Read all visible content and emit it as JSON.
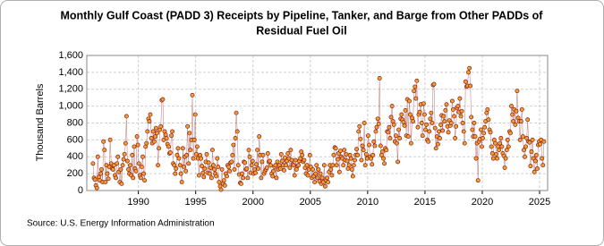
{
  "chart_data": {
    "type": "line",
    "title": [
      "Monthly Gulf Coast (PADD 3) Receipts by Pipeline, Tanker, and Barge from Other PADDs of",
      "Residual Fuel Oil"
    ],
    "ylabel": "Thousand Barrels",
    "source": "Source: U.S. Energy Information Administration",
    "xlim": [
      1985.5,
      2025.7
    ],
    "xticks": [
      1990,
      1995,
      2000,
      2005,
      2010,
      2015,
      2020,
      2025
    ],
    "ylim": [
      0,
      1600
    ],
    "yticks": [
      0,
      200,
      400,
      600,
      800,
      {
        "value": 1000,
        "label": "1,000"
      },
      {
        "value": 1200,
        "label": "1,200"
      },
      {
        "value": 1400,
        "label": "1,400"
      },
      {
        "value": 1600,
        "label": "1,600"
      }
    ],
    "grid": true,
    "series": [
      {
        "color": "#8b1a1a",
        "marker_fill": "#f0a030",
        "x": [
          1986.04,
          1986.13,
          1986.21,
          1986.29,
          1986.38,
          1986.46,
          1986.54,
          1986.63,
          1986.71,
          1986.79,
          1986.88,
          1986.96,
          1987.04,
          1987.13,
          1987.21,
          1987.29,
          1987.38,
          1987.46,
          1987.54,
          1987.63,
          1987.71,
          1987.79,
          1987.88,
          1987.96,
          1988.04,
          1988.13,
          1988.21,
          1988.29,
          1988.38,
          1988.46,
          1988.54,
          1988.63,
          1988.71,
          1988.79,
          1988.88,
          1988.96,
          1989.04,
          1989.13,
          1989.21,
          1989.29,
          1989.38,
          1989.46,
          1989.54,
          1989.63,
          1989.71,
          1989.79,
          1989.88,
          1989.96,
          1990.04,
          1990.13,
          1990.21,
          1990.29,
          1990.38,
          1990.46,
          1990.54,
          1990.63,
          1990.71,
          1990.79,
          1990.88,
          1990.96,
          1991.04,
          1991.13,
          1991.21,
          1991.29,
          1991.38,
          1991.46,
          1991.54,
          1991.63,
          1991.71,
          1991.79,
          1991.88,
          1991.96,
          1992.04,
          1992.13,
          1992.21,
          1992.29,
          1992.38,
          1992.46,
          1992.54,
          1992.63,
          1992.71,
          1992.79,
          1992.88,
          1992.96,
          1993.04,
          1993.13,
          1993.21,
          1993.29,
          1993.38,
          1993.46,
          1993.54,
          1993.63,
          1993.71,
          1993.79,
          1993.88,
          1993.96,
          1994.04,
          1994.13,
          1994.21,
          1994.29,
          1994.38,
          1994.46,
          1994.54,
          1994.63,
          1994.71,
          1994.79,
          1994.88,
          1994.96,
          1995.04,
          1995.13,
          1995.21,
          1995.29,
          1995.38,
          1995.46,
          1995.54,
          1995.63,
          1995.71,
          1995.79,
          1995.88,
          1995.96,
          1996.04,
          1996.13,
          1996.21,
          1996.29,
          1996.38,
          1996.46,
          1996.54,
          1996.63,
          1996.71,
          1996.79,
          1996.88,
          1996.96,
          1997.04,
          1997.13,
          1997.21,
          1997.29,
          1997.38,
          1997.46,
          1997.54,
          1997.63,
          1997.71,
          1997.79,
          1997.88,
          1997.96,
          1998.04,
          1998.13,
          1998.21,
          1998.29,
          1998.38,
          1998.46,
          1998.54,
          1998.63,
          1998.71,
          1998.79,
          1998.88,
          1998.96,
          1999.04,
          1999.13,
          1999.21,
          1999.29,
          1999.38,
          1999.46,
          1999.54,
          1999.63,
          1999.71,
          1999.79,
          1999.88,
          1999.96,
          2000.04,
          2000.13,
          2000.21,
          2000.29,
          2000.38,
          2000.46,
          2000.54,
          2000.63,
          2000.71,
          2000.79,
          2000.88,
          2000.96,
          2001.04,
          2001.13,
          2001.21,
          2001.29,
          2001.38,
          2001.46,
          2001.54,
          2001.63,
          2001.71,
          2001.79,
          2001.88,
          2001.96,
          2002.04,
          2002.13,
          2002.21,
          2002.29,
          2002.38,
          2002.46,
          2002.54,
          2002.63,
          2002.71,
          2002.79,
          2002.88,
          2002.96,
          2003.04,
          2003.13,
          2003.21,
          2003.29,
          2003.38,
          2003.46,
          2003.54,
          2003.63,
          2003.71,
          2003.79,
          2003.88,
          2003.96,
          2004.04,
          2004.13,
          2004.21,
          2004.29,
          2004.38,
          2004.46,
          2004.54,
          2004.63,
          2004.71,
          2004.79,
          2004.88,
          2004.96,
          2005.04,
          2005.13,
          2005.21,
          2005.29,
          2005.38,
          2005.46,
          2005.54,
          2005.63,
          2005.71,
          2005.79,
          2005.88,
          2005.96,
          2006.04,
          2006.13,
          2006.21,
          2006.29,
          2006.38,
          2006.46,
          2006.54,
          2006.63,
          2006.71,
          2006.79,
          2006.88,
          2006.96,
          2007.04,
          2007.13,
          2007.21,
          2007.29,
          2007.38,
          2007.46,
          2007.54,
          2007.63,
          2007.71,
          2007.79,
          2007.88,
          2007.96,
          2008.04,
          2008.13,
          2008.21,
          2008.29,
          2008.38,
          2008.46,
          2008.54,
          2008.63,
          2008.71,
          2008.79,
          2008.88,
          2008.96,
          2009.04,
          2009.13,
          2009.21,
          2009.29,
          2009.38,
          2009.46,
          2009.54,
          2009.63,
          2009.71,
          2009.79,
          2009.88,
          2009.96,
          2010.04,
          2010.13,
          2010.21,
          2010.29,
          2010.38,
          2010.46,
          2010.54,
          2010.63,
          2010.71,
          2010.79,
          2010.88,
          2010.96,
          2011.04,
          2011.13,
          2011.21,
          2011.29,
          2011.38,
          2011.46,
          2011.54,
          2011.63,
          2011.71,
          2011.79,
          2011.88,
          2011.96,
          2012.04,
          2012.13,
          2012.21,
          2012.29,
          2012.38,
          2012.46,
          2012.54,
          2012.63,
          2012.71,
          2012.79,
          2012.88,
          2012.96,
          2013.04,
          2013.13,
          2013.21,
          2013.29,
          2013.38,
          2013.46,
          2013.54,
          2013.63,
          2013.71,
          2013.79,
          2013.88,
          2013.96,
          2014.04,
          2014.13,
          2014.21,
          2014.29,
          2014.38,
          2014.46,
          2014.54,
          2014.63,
          2014.71,
          2014.79,
          2014.88,
          2014.96,
          2015.04,
          2015.13,
          2015.21,
          2015.29,
          2015.38,
          2015.46,
          2015.54,
          2015.63,
          2015.71,
          2015.79,
          2015.88,
          2015.96,
          2016.04,
          2016.13,
          2016.21,
          2016.29,
          2016.38,
          2016.46,
          2016.54,
          2016.63,
          2016.71,
          2016.79,
          2016.88,
          2016.96,
          2017.04,
          2017.13,
          2017.21,
          2017.29,
          2017.38,
          2017.46,
          2017.54,
          2017.63,
          2017.71,
          2017.79,
          2017.88,
          2017.96,
          2018.04,
          2018.13,
          2018.21,
          2018.29,
          2018.38,
          2018.46,
          2018.54,
          2018.63,
          2018.71,
          2018.79,
          2018.88,
          2018.96,
          2019.04,
          2019.13,
          2019.21,
          2019.29,
          2019.38,
          2019.46,
          2019.54,
          2019.63,
          2019.71,
          2019.79,
          2019.88,
          2019.96,
          2020.04,
          2020.13,
          2020.21,
          2020.29,
          2020.38,
          2020.46,
          2020.54,
          2020.63,
          2020.71,
          2020.79,
          2020.88,
          2020.96,
          2021.04,
          2021.13,
          2021.21,
          2021.29,
          2021.38,
          2021.46,
          2021.54,
          2021.63,
          2021.71,
          2021.79,
          2021.88,
          2021.96,
          2022.04,
          2022.13,
          2022.21,
          2022.29,
          2022.38,
          2022.46,
          2022.54,
          2022.63,
          2022.71,
          2022.79,
          2022.88,
          2022.96,
          2023.04,
          2023.13,
          2023.21,
          2023.29,
          2023.38,
          2023.46,
          2023.54,
          2023.63,
          2023.71,
          2023.79,
          2023.88,
          2023.96,
          2024.04,
          2024.13,
          2024.21,
          2024.29,
          2024.38,
          2024.46,
          2024.54,
          2024.63,
          2024.71,
          2024.79,
          2024.88,
          2024.96,
          2025.04,
          2025.13,
          2025.21,
          2025.29,
          2025.38
        ],
        "values": [
          320,
          150,
          130,
          60,
          30,
          400,
          160,
          120,
          200,
          250,
          100,
          580,
          480,
          100,
          300,
          200,
          140,
          280,
          600,
          320,
          260,
          250,
          300,
          180,
          150,
          320,
          400,
          220,
          100,
          250,
          80,
          300,
          370,
          430,
          560,
          880,
          350,
          250,
          200,
          300,
          180,
          420,
          150,
          520,
          260,
          230,
          640,
          540,
          320,
          180,
          150,
          280,
          400,
          200,
          120,
          520,
          560,
          700,
          850,
          820,
          900,
          620,
          560,
          700,
          580,
          640,
          740,
          680,
          300,
          500,
          720,
          760,
          1070,
          1080,
          600,
          700,
          660,
          620,
          550,
          520,
          440,
          450,
          650,
          700,
          320,
          300,
          200,
          260,
          420,
          500,
          380,
          300,
          200,
          100,
          500,
          280,
          400,
          230,
          420,
          760,
          320,
          680,
          480,
          600,
          1130,
          380,
          600,
          900,
          430,
          520,
          380,
          180,
          420,
          380,
          290,
          210,
          160,
          260,
          340,
          430,
          210,
          330,
          200,
          270,
          150,
          480,
          300,
          250,
          200,
          170,
          380,
          280,
          100,
          50,
          10,
          250,
          80,
          120,
          60,
          200,
          170,
          300,
          280,
          230,
          330,
          340,
          420,
          540,
          250,
          620,
          920,
          700,
          300,
          190,
          90,
          80,
          200,
          150,
          340,
          330,
          250,
          260,
          150,
          480,
          400,
          210,
          300,
          350,
          200,
          250,
          210,
          310,
          480,
          260,
          640,
          420,
          150,
          340,
          420,
          200,
          230,
          250,
          270,
          440,
          340,
          350,
          300,
          200,
          170,
          230,
          280,
          300,
          150,
          340,
          250,
          300,
          260,
          430,
          350,
          300,
          240,
          390,
          300,
          350,
          440,
          380,
          270,
          480,
          360,
          310,
          300,
          180,
          360,
          250,
          290,
          300,
          350,
          380,
          460,
          420,
          340,
          360,
          270,
          200,
          300,
          180,
          250,
          420,
          280,
          150,
          250,
          170,
          100,
          200,
          300,
          150,
          250,
          110,
          200,
          80,
          150,
          100,
          300,
          50,
          120,
          150,
          100,
          220,
          300,
          250,
          180,
          300,
          420,
          510,
          500,
          300,
          370,
          440,
          220,
          470,
          400,
          380,
          300,
          480,
          360,
          430,
          350,
          260,
          300,
          420,
          380,
          250,
          170,
          300,
          360,
          420,
          490,
          420,
          700,
          760,
          610,
          360,
          530,
          480,
          800,
          300,
          430,
          380,
          650,
          540,
          400,
          380,
          310,
          420,
          580,
          530,
          700,
          750,
          850,
          790,
          1330,
          530,
          420,
          460,
          380,
          320,
          500,
          480,
          700,
          690,
          750,
          620,
          870,
          1000,
          820,
          780,
          580,
          650,
          560,
          340,
          720,
          620,
          850,
          900,
          840,
          810,
          770,
          950,
          650,
          1080,
          640,
          1060,
          900,
          560,
          860,
          820,
          1180,
          1230,
          1090,
          1300,
          750,
          900,
          930,
          1020,
          800,
          650,
          1030,
          900,
          720,
          780,
          600,
          580,
          700,
          850,
          920,
          800,
          1250,
          1260,
          740,
          500,
          640,
          550,
          700,
          620,
          780,
          890,
          710,
          880,
          820,
          950,
          1020,
          760,
          690,
          830,
          770,
          800,
          1060,
          960,
          880,
          620,
          760,
          980,
          1000,
          930,
          1090,
          880,
          940,
          800,
          700,
          560,
          1290,
          1230,
          1240,
          1400,
          1450,
          1240,
          870,
          720,
          640,
          800,
          640,
          380,
          560,
          120,
          580,
          610,
          720,
          520,
          620,
          680,
          750,
          820,
          920,
          960,
          840,
          720,
          690,
          520,
          440,
          380,
          600,
          560,
          430,
          380,
          520,
          480,
          560,
          620,
          520,
          440,
          410,
          270,
          380,
          480,
          600,
          520,
          700,
          680,
          1000,
          900,
          820,
          960,
          780,
          940,
          1180,
          860,
          820,
          600,
          820,
          960,
          640,
          480,
          400,
          520,
          620,
          840,
          580,
          570,
          290,
          460,
          600,
          380,
          220,
          350,
          420,
          260,
          540,
          580,
          550,
          600,
          380,
          300,
          580
        ]
      }
    ]
  }
}
